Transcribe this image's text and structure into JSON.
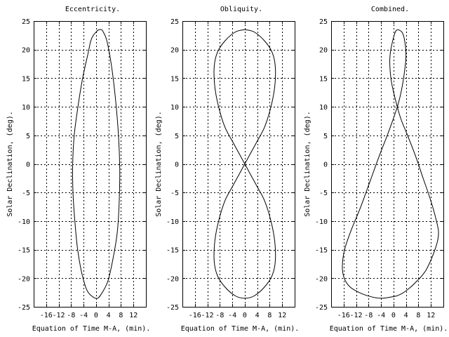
{
  "chart_data": [
    {
      "type": "line",
      "title": "Eccentricity.",
      "xlabel": "Equation of Time M-A, (min).",
      "ylabel": "Solar Declination, (deg).",
      "xlim": [
        -20,
        16
      ],
      "ylim": [
        -25,
        25
      ],
      "xticks": [
        -16,
        -12,
        -8,
        -4,
        0,
        4,
        8,
        12
      ],
      "yticks": [
        -25,
        -20,
        -15,
        -10,
        -5,
        0,
        5,
        10,
        15,
        20,
        25
      ],
      "grid": true,
      "series": [
        {
          "name": "Eccentricity",
          "x": [
            -0.1,
            0.6,
            1.6,
            2.2,
            3.5,
            5.0,
            6.3,
            7.2,
            7.6,
            7.4,
            6.8,
            5.3,
            3.8,
            2.0,
            0.5,
            -1.2,
            -3.0,
            -4.6,
            -5.9,
            -6.8,
            -7.4,
            -7.5,
            -7.0,
            -5.8,
            -4.3,
            -2.5,
            -1.7,
            -0.9,
            -0.1
          ],
          "y": [
            23.0,
            23.4,
            23.5,
            23.2,
            21.5,
            17.0,
            11.0,
            5.0,
            -1.0,
            -7.0,
            -12.0,
            -17.0,
            -20.5,
            -22.5,
            -23.5,
            -23.2,
            -22.0,
            -19.0,
            -15.0,
            -10.0,
            -5.0,
            0.0,
            5.0,
            10.0,
            15.0,
            19.5,
            21.5,
            22.5,
            23.0
          ]
        }
      ]
    },
    {
      "type": "line",
      "title": "Obliquity.",
      "xlabel": "Equation of Time M-A, (min).",
      "ylabel": "Solar Declination, (deg).",
      "xlim": [
        -20,
        16
      ],
      "ylim": [
        -25,
        25
      ],
      "xticks": [
        -16,
        -12,
        -8,
        -4,
        0,
        4,
        8,
        12
      ],
      "yticks": [
        -25,
        -20,
        -15,
        -10,
        -5,
        0,
        5,
        10,
        15,
        20,
        25
      ],
      "grid": true,
      "series": [
        {
          "name": "Obliquity",
          "x": [
            0.0,
            3.0,
            6.4,
            8.8,
            9.8,
            9.6,
            8.4,
            6.4,
            4.0,
            1.8,
            0.0,
            -1.8,
            -4.0,
            -6.4,
            -8.4,
            -9.6,
            -9.8,
            -8.8,
            -6.4,
            -3.0,
            0.0,
            3.0,
            6.4,
            8.8,
            9.8,
            9.6,
            8.4,
            6.4,
            4.0,
            1.8,
            0.0,
            -1.8,
            -4.0,
            -6.4,
            -8.4,
            -9.6,
            -9.8,
            -8.8,
            -6.4,
            -3.0,
            0.0
          ],
          "y": [
            23.5,
            23.1,
            21.5,
            19.5,
            17.0,
            13.5,
            10.0,
            6.5,
            4.0,
            1.8,
            0.0,
            -1.8,
            -4.0,
            -6.5,
            -10.0,
            -13.5,
            -17.0,
            -19.5,
            -21.5,
            -23.1,
            -23.5,
            -23.1,
            -21.5,
            -19.5,
            -17.0,
            -13.5,
            -10.0,
            -6.5,
            -4.0,
            -1.8,
            0.0,
            1.8,
            4.0,
            6.5,
            10.0,
            13.5,
            17.0,
            19.5,
            21.5,
            23.1,
            23.5
          ]
        }
      ]
    },
    {
      "type": "line",
      "title": "Combined.",
      "xlabel": "Equation of Time M-A, (min).",
      "ylabel": "Solar Declination, (deg).",
      "xlim": [
        -20,
        16
      ],
      "ylim": [
        -25,
        25
      ],
      "xticks": [
        -16,
        -12,
        -8,
        -4,
        0,
        4,
        8,
        12
      ],
      "yticks": [
        -25,
        -20,
        -15,
        -10,
        -5,
        0,
        5,
        10,
        15,
        20,
        25
      ],
      "grid": true,
      "series": [
        {
          "name": "Combined",
          "x": [
            1.5,
            2.8,
            3.6,
            4.0,
            3.5,
            2.6,
            1.5,
            0.0,
            -2.0,
            -4.5,
            -7.5,
            -10.5,
            -13.5,
            -15.7,
            -16.4,
            -15.8,
            -14.0,
            -11.0,
            -7.5,
            -4.0,
            -1.0,
            1.5,
            4.5,
            7.5,
            10.5,
            13.3,
            14.4,
            14.0,
            12.0,
            9.5,
            7.0,
            4.5,
            2.3,
            0.5,
            -0.7,
            -1.2,
            -1.0,
            -0.4,
            0.2,
            0.8,
            1.5
          ],
          "y": [
            23.5,
            23.0,
            21.5,
            19.0,
            16.0,
            13.0,
            10.5,
            8.0,
            5.0,
            1.5,
            -3.0,
            -7.5,
            -11.5,
            -15.0,
            -18.0,
            -20.0,
            -21.5,
            -22.5,
            -23.2,
            -23.5,
            -23.3,
            -23.0,
            -22.0,
            -20.5,
            -18.5,
            -15.0,
            -12.5,
            -10.5,
            -6.5,
            -2.5,
            1.5,
            5.0,
            8.0,
            11.5,
            14.5,
            17.5,
            19.5,
            21.2,
            22.5,
            23.3,
            23.5
          ]
        }
      ]
    }
  ]
}
